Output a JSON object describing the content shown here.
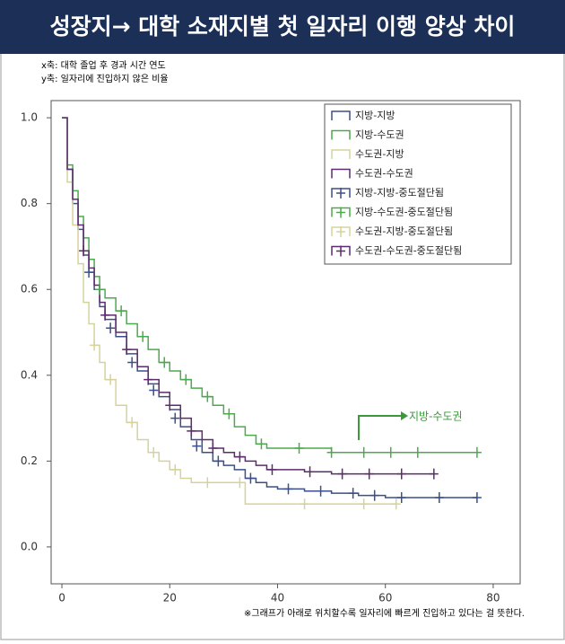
{
  "chart_data": {
    "type": "line",
    "title": "성장지→ 대학 소재지별 첫 일자리 이행 양상 차이",
    "subtitle": [
      "x축: 대학 졸업 후 경과 시간 연도",
      "y축: 일자리에 진입하지 않은 비율"
    ],
    "annotation": "지방-수도권",
    "note": "※그래프가 아래로 위치할수록 일자리에 빠르게 진입하고 있다는 걸 뜻한다.",
    "xlim": [
      -2,
      85
    ],
    "ylim": [
      -0.086,
      1.04
    ],
    "xticks": [
      0,
      20,
      40,
      60,
      80
    ],
    "yticks": [
      {
        "value": 0,
        "label": "0.0"
      },
      0.2,
      0.4,
      0.6,
      0.8,
      {
        "value": 1,
        "label": "1.0"
      }
    ],
    "step": true,
    "series": [
      {
        "name": "지방-지방",
        "color": "#3b4f8c",
        "style": "step",
        "x": [
          0,
          1,
          2,
          3,
          4,
          5,
          6,
          7,
          8,
          10,
          12,
          14,
          16,
          18,
          20,
          22,
          24,
          26,
          28,
          30,
          32,
          34,
          36,
          38,
          40,
          45,
          50,
          55,
          60,
          70,
          77
        ],
        "values": [
          1.0,
          0.88,
          0.8,
          0.74,
          0.68,
          0.64,
          0.6,
          0.56,
          0.53,
          0.49,
          0.45,
          0.41,
          0.38,
          0.35,
          0.32,
          0.28,
          0.25,
          0.22,
          0.2,
          0.19,
          0.18,
          0.16,
          0.15,
          0.14,
          0.135,
          0.13,
          0.125,
          0.12,
          0.115,
          0.115,
          0.115
        ]
      },
      {
        "name": "지방-수도권",
        "color": "#4caa4c",
        "style": "step",
        "x": [
          0,
          1,
          2,
          3,
          4,
          5,
          6,
          7,
          8,
          10,
          12,
          14,
          16,
          18,
          20,
          22,
          24,
          26,
          28,
          30,
          32,
          34,
          36,
          38,
          40,
          45,
          50,
          55,
          60,
          70,
          77
        ],
        "values": [
          1.0,
          0.89,
          0.83,
          0.77,
          0.72,
          0.67,
          0.63,
          0.6,
          0.58,
          0.55,
          0.52,
          0.49,
          0.46,
          0.43,
          0.41,
          0.39,
          0.37,
          0.35,
          0.33,
          0.31,
          0.28,
          0.26,
          0.24,
          0.23,
          0.23,
          0.23,
          0.22,
          0.22,
          0.22,
          0.22,
          0.22
        ]
      },
      {
        "name": "수도권-지방",
        "color": "#d6d39a",
        "style": "step",
        "x": [
          0,
          1,
          2,
          3,
          4,
          5,
          6,
          7,
          8,
          10,
          12,
          14,
          16,
          18,
          20,
          22,
          24,
          26,
          28,
          30,
          34,
          40,
          50,
          62
        ],
        "values": [
          1.0,
          0.85,
          0.75,
          0.66,
          0.57,
          0.52,
          0.47,
          0.43,
          0.39,
          0.33,
          0.29,
          0.25,
          0.22,
          0.2,
          0.18,
          0.16,
          0.15,
          0.15,
          0.15,
          0.15,
          0.1,
          0.1,
          0.1,
          0.1
        ]
      },
      {
        "name": "수도권-수도권",
        "color": "#5e2b6e",
        "style": "step",
        "x": [
          0,
          1,
          2,
          3,
          4,
          5,
          6,
          7,
          8,
          10,
          12,
          14,
          16,
          18,
          20,
          22,
          24,
          26,
          28,
          30,
          32,
          34,
          36,
          38,
          40,
          45,
          50,
          55,
          60,
          69
        ],
        "values": [
          1.0,
          0.88,
          0.81,
          0.75,
          0.69,
          0.65,
          0.61,
          0.57,
          0.54,
          0.5,
          0.46,
          0.42,
          0.39,
          0.36,
          0.33,
          0.3,
          0.27,
          0.25,
          0.23,
          0.22,
          0.21,
          0.2,
          0.19,
          0.18,
          0.18,
          0.175,
          0.17,
          0.17,
          0.17,
          0.17
        ]
      },
      {
        "name": "지방-지방-중도절단됨",
        "color": "#3b4f8c",
        "style": "censor",
        "x": [
          5,
          9,
          13,
          17,
          21,
          25,
          29,
          35,
          42,
          48,
          54,
          58,
          63,
          70,
          77
        ],
        "values": [
          0.64,
          0.51,
          0.43,
          0.365,
          0.3,
          0.235,
          0.2,
          0.16,
          0.135,
          0.13,
          0.125,
          0.12,
          0.115,
          0.115,
          0.115
        ]
      },
      {
        "name": "지방-수도권-중도절단됨",
        "color": "#4caa4c",
        "style": "censor",
        "x": [
          7,
          11,
          15,
          19,
          23,
          27,
          31,
          37,
          44,
          50,
          56,
          61,
          66,
          77
        ],
        "values": [
          0.6,
          0.55,
          0.49,
          0.43,
          0.39,
          0.35,
          0.31,
          0.24,
          0.23,
          0.22,
          0.22,
          0.22,
          0.22,
          0.22
        ]
      },
      {
        "name": "수도권-지방-중도절단됨",
        "color": "#d6d39a",
        "style": "censor",
        "x": [
          6,
          9,
          13,
          17,
          21,
          27,
          33,
          45,
          56,
          62
        ],
        "values": [
          0.47,
          0.39,
          0.29,
          0.22,
          0.18,
          0.15,
          0.15,
          0.1,
          0.1,
          0.1
        ]
      },
      {
        "name": "수도권-수도권-중도절단됨",
        "color": "#5e2b6e",
        "style": "censor",
        "x": [
          4,
          8,
          12,
          16,
          20,
          24,
          28,
          33,
          39,
          46,
          52,
          57,
          63,
          69
        ],
        "values": [
          0.69,
          0.54,
          0.46,
          0.39,
          0.33,
          0.27,
          0.23,
          0.21,
          0.18,
          0.175,
          0.17,
          0.17,
          0.17,
          0.17
        ]
      }
    ]
  }
}
